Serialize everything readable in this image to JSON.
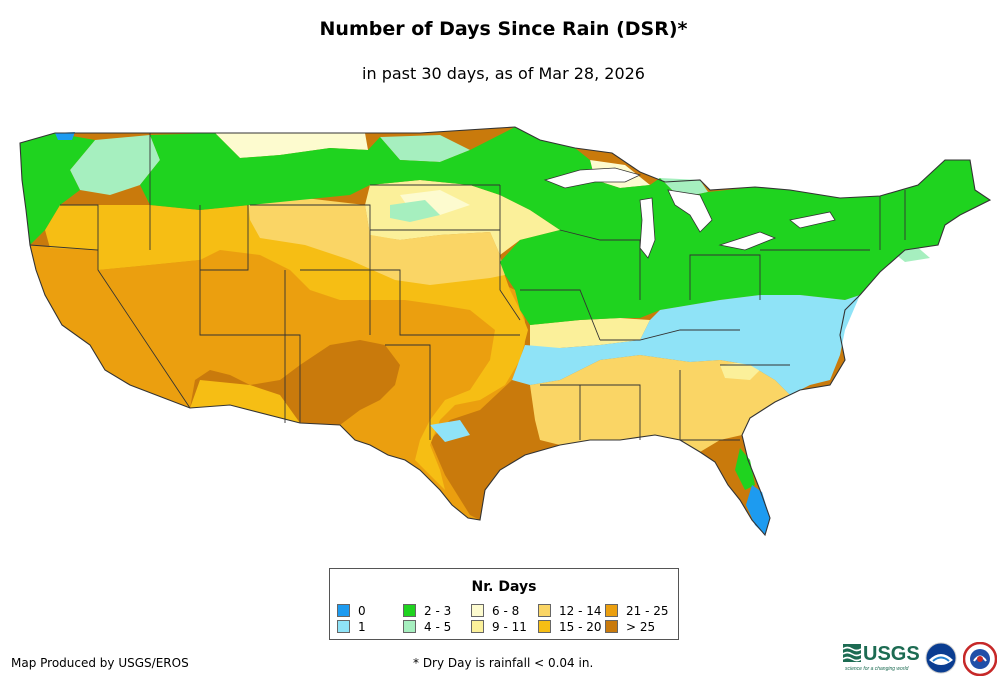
{
  "title": "Number of Days Since Rain (DSR)*",
  "subtitle": "in past 30 days, as of Mar 28, 2026",
  "legend": {
    "title": "Nr. Days",
    "items": [
      {
        "label": "0",
        "color": "#1d9bf0"
      },
      {
        "label": "1",
        "color": "#8fe3f7"
      },
      {
        "label": "2 - 3",
        "color": "#1fd31f"
      },
      {
        "label": "4 - 5",
        "color": "#a6efbf"
      },
      {
        "label": "6 - 8",
        "color": "#fdfbcf"
      },
      {
        "label": "9 - 11",
        "color": "#fbf09a"
      },
      {
        "label": "12 - 14",
        "color": "#fad565"
      },
      {
        "label": "15 - 20",
        "color": "#f6be14"
      },
      {
        "label": "21 - 25",
        "color": "#eb9f0f"
      },
      {
        "label": "> 25",
        "color": "#c97a0c"
      }
    ]
  },
  "map": {
    "region": "Contiguous United States",
    "layers": [
      {
        "class": "> 25",
        "color": "#c97a0c"
      },
      {
        "class": "21 - 25",
        "color": "#eb9f0f"
      },
      {
        "class": "15 - 20",
        "color": "#f6be14"
      },
      {
        "class": "12 - 14",
        "color": "#fad565"
      },
      {
        "class": "9 - 11",
        "color": "#fbf09a"
      },
      {
        "class": "6 - 8",
        "color": "#fdfbcf"
      },
      {
        "class": "4 - 5",
        "color": "#a6efbf"
      },
      {
        "class": "2 - 3",
        "color": "#1fd31f"
      },
      {
        "class": "1",
        "color": "#8fe3f7"
      },
      {
        "class": "0",
        "color": "#1d9bf0"
      }
    ],
    "border_color": "#333333"
  },
  "footer": {
    "credit": "Map Produced by USGS/EROS",
    "footnote": "* Dry Day is rainfall < 0.04 in."
  },
  "logos": {
    "usgs": "USGS",
    "usgs_tagline": "science for a changing world"
  }
}
